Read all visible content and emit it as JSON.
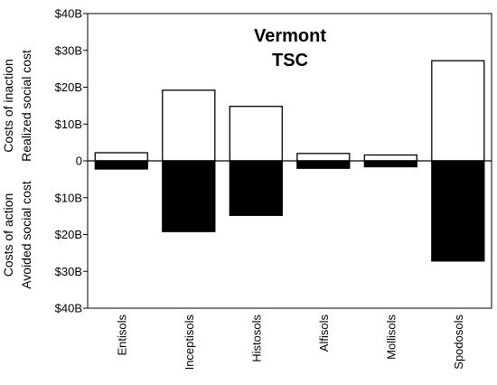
{
  "chart_data": {
    "type": "bar",
    "title": "Vermont",
    "subtitle": "TSC",
    "categories": [
      "Entisols",
      "Inceptisols",
      "Histosols",
      "Alfisols",
      "Mollisols",
      "Spodosols"
    ],
    "series": [
      {
        "name": "Realized social cost",
        "values": [
          2.2,
          19.2,
          14.8,
          2.0,
          1.6,
          27.2
        ],
        "fill": "#ffffff"
      },
      {
        "name": "Avoided social cost",
        "values": [
          -2.2,
          -19.2,
          -14.8,
          -2.0,
          -1.6,
          -27.2
        ],
        "fill": "#000000"
      }
    ],
    "ylim": [
      -40,
      40
    ],
    "yticks": [
      40,
      30,
      20,
      10,
      0,
      -10,
      -20,
      -30,
      -40
    ],
    "yticklabels": [
      "$40B",
      "$30B",
      "$20B",
      "$10B",
      "0",
      "$10B",
      "$20B",
      "$30B",
      "$40B"
    ],
    "ylabel_top": [
      "Costs of inaction",
      "Realized social cost"
    ],
    "ylabel_bottom": [
      "Costs of action",
      "Avoided social cost"
    ],
    "grid": false,
    "legend": "none"
  }
}
